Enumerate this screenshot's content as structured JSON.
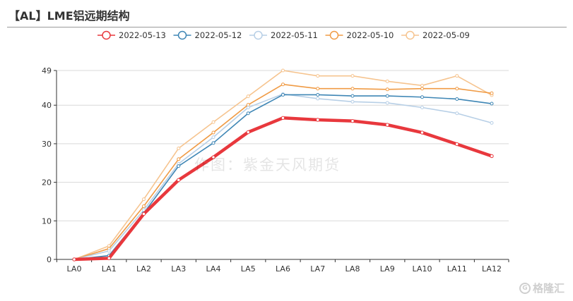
{
  "title": "【AL】LME铝远期结构",
  "watermark": "作图：紫金天风期货",
  "brand": {
    "icon": "G",
    "text": "格隆汇"
  },
  "chart_data": {
    "type": "line",
    "title": "【AL】LME铝远期结构",
    "categories": [
      "LA0",
      "LA1",
      "LA2",
      "LA3",
      "LA4",
      "LA5",
      "LA6",
      "LA7",
      "LA8",
      "LA9",
      "LA10",
      "LA11",
      "LA12"
    ],
    "ylim": [
      0,
      49
    ],
    "yticks": [
      0,
      10,
      20,
      30,
      40,
      49
    ],
    "grid": true,
    "legend_position": "top",
    "series": [
      {
        "name": "2022-05-13",
        "color": "#e8383d",
        "width": 4.5,
        "values": [
          0,
          0.3,
          11.8,
          20.6,
          26.5,
          33.0,
          36.7,
          36.2,
          35.9,
          34.9,
          32.9,
          29.9,
          26.8
        ]
      },
      {
        "name": "2022-05-12",
        "color": "#3e86b5",
        "width": 1.6,
        "values": [
          0,
          1.0,
          12.0,
          24.2,
          30.2,
          37.9,
          42.7,
          42.7,
          42.4,
          42.4,
          42.1,
          41.6,
          40.4
        ]
      },
      {
        "name": "2022-05-11",
        "color": "#b7cfe6",
        "width": 1.6,
        "values": [
          0,
          2.2,
          12.8,
          24.8,
          31.7,
          39.4,
          42.9,
          41.7,
          40.9,
          40.6,
          39.4,
          37.9,
          35.4
        ]
      },
      {
        "name": "2022-05-10",
        "color": "#f09b45",
        "width": 1.6,
        "values": [
          0,
          2.8,
          13.8,
          26.0,
          32.9,
          40.1,
          45.4,
          44.3,
          44.3,
          44.1,
          44.3,
          44.3,
          43.1
        ]
      },
      {
        "name": "2022-05-09",
        "color": "#f6c48f",
        "width": 1.6,
        "values": [
          0,
          3.5,
          15.6,
          28.8,
          35.6,
          42.3,
          49.0,
          47.6,
          47.6,
          46.2,
          45.1,
          47.6,
          42.6
        ]
      }
    ]
  }
}
